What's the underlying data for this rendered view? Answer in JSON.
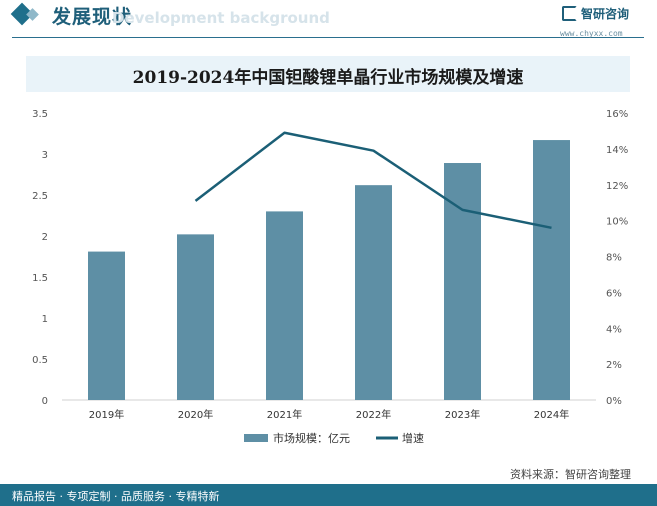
{
  "header": {
    "title": "发展现状",
    "subtitle": "Development background",
    "brand": "智研咨询",
    "website": "www.chyxx.com"
  },
  "chart_data": {
    "type": "bar",
    "title": "2019-2024年中国钽酸锂单晶行业市场规模及增速",
    "categories": [
      "2019年",
      "2020年",
      "2021年",
      "2022年",
      "2023年",
      "2024年"
    ],
    "series": [
      {
        "name": "市场规模：亿元",
        "type": "bar",
        "axis": "left",
        "values": [
          1.81,
          2.02,
          2.3,
          2.62,
          2.89,
          3.17
        ]
      },
      {
        "name": "增速",
        "type": "line",
        "axis": "right",
        "values": [
          null,
          11.1,
          14.9,
          13.9,
          10.6,
          9.6
        ]
      }
    ],
    "y_left": {
      "min": 0,
      "max": 3.5,
      "ticks": [
        "0",
        "0.5",
        "1",
        "1.5",
        "2",
        "2.5",
        "3",
        "3.5"
      ]
    },
    "y_right": {
      "min": 0,
      "max": 16,
      "ticks": [
        "0%",
        "2%",
        "4%",
        "6%",
        "8%",
        "10%",
        "12%",
        "14%",
        "16%"
      ]
    },
    "legend_position": "bottom",
    "colors": {
      "bar": "#5e8fa5",
      "line": "#1b5f76"
    }
  },
  "footer": {
    "tagline": "精品报告 · 专项定制 · 品质服务 · 专精特新",
    "source": "资料来源：智研咨询整理"
  }
}
